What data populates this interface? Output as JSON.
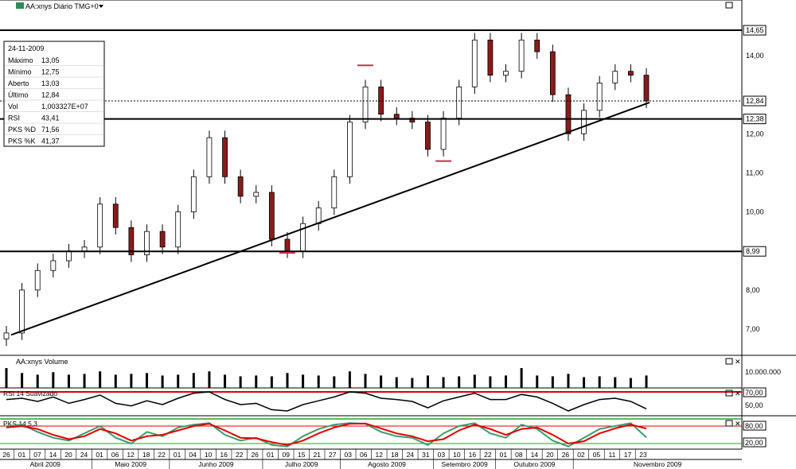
{
  "chart_title": "AA:xnys Diário TMG+0",
  "info_box": {
    "date": "24-11-2009",
    "rows": [
      {
        "label": "Máximo",
        "value": "13,05",
        "color": "#000000"
      },
      {
        "label": "Mínimo",
        "value": "12,75",
        "color": "#000000"
      },
      {
        "label": "Aberto",
        "value": "13,03",
        "color": "#000000"
      },
      {
        "label": "Último",
        "value": "12,84",
        "color": "#000000"
      },
      {
        "label": "Vol",
        "value": "1,003327E+07",
        "color": "#000000"
      },
      {
        "label": "RSI",
        "value": "43,41",
        "color": "#000000"
      },
      {
        "label": "PKS %D",
        "value": "71,56",
        "color": "#c00000"
      },
      {
        "label": "PKS %K",
        "value": "41,37",
        "color": "#2e8b57"
      }
    ]
  },
  "price_labels": [
    {
      "text": "14,65",
      "boxed": true
    },
    {
      "text": "14,00",
      "boxed": false
    },
    {
      "text": "12,84",
      "boxed": true
    },
    {
      "text": "12,38",
      "boxed": true
    },
    {
      "text": "12,00",
      "boxed": false
    },
    {
      "text": "11,00",
      "boxed": false
    },
    {
      "text": "10,00",
      "boxed": false
    },
    {
      "text": "8,99",
      "boxed": true
    },
    {
      "text": "8,00",
      "boxed": false
    },
    {
      "text": "7,00",
      "boxed": false
    }
  ],
  "volume_panel": {
    "title": "AA:xnys Volume",
    "label": "10.000.000"
  },
  "rsi_panel": {
    "title": "RSI 14 Suavizado",
    "labels": [
      "70,00",
      "50,00"
    ]
  },
  "stoch_panel": {
    "title": "PKS 14,5,3",
    "labels": [
      "80,00",
      "20,00"
    ]
  },
  "x_axis": {
    "days": [
      "26",
      "01",
      "07",
      "14",
      "20",
      "24",
      "01",
      "06",
      "12",
      "18",
      "22",
      "01",
      "04",
      "10",
      "16",
      "22",
      "26",
      "01",
      "09",
      "15",
      "21",
      "27",
      "03",
      "06",
      "12",
      "18",
      "24",
      "31",
      "03",
      "10",
      "16",
      "22",
      "01",
      "08",
      "14",
      "20",
      "26",
      "02",
      "05",
      "11",
      "17",
      "23"
    ],
    "months": [
      "Abril 2009",
      "Maio 2009",
      "Junho 2009",
      "Julho 2009",
      "Agosto 2009",
      "Setembro 2009",
      "Outubro 2009",
      "Novembro 2009"
    ]
  },
  "colors": {
    "up_candle": "#ffffff",
    "down_candle": "#8b1a1a",
    "rsi_level_70": "#e00000",
    "stoch_level": "#2e9e2e",
    "stoch_k": "#3c9c6c",
    "stoch_d": "#e00000",
    "marker": "#c0304a"
  },
  "chart_data": [
    {
      "type": "line",
      "subtype": "candlestick",
      "title": "AA:xnys Diário TMG+0",
      "y_axis_labels": [
        "7,00",
        "8,00",
        "10,00",
        "11,00",
        "12,00",
        "14,00"
      ],
      "horizontal_lines": [
        14.65,
        12.38,
        8.99
      ],
      "trendline": {
        "from": [
          "2009-03-27",
          6.85
        ],
        "to": [
          "2009-11-24",
          12.8
        ]
      },
      "markers": [
        {
          "date": "2009-08-07",
          "price": 13.75
        },
        {
          "date": "2009-09-02",
          "price": 11.3
        },
        {
          "date": "2009-07-09",
          "price": 8.95
        }
      ],
      "x": [
        "2009-03-26",
        "2009-04-01",
        "2009-04-07",
        "2009-04-14",
        "2009-04-20",
        "2009-04-24",
        "2009-05-01",
        "2009-05-06",
        "2009-05-12",
        "2009-05-18",
        "2009-05-22",
        "2009-06-01",
        "2009-06-04",
        "2009-06-10",
        "2009-06-16",
        "2009-06-22",
        "2009-06-26",
        "2009-07-01",
        "2009-07-09",
        "2009-07-15",
        "2009-07-21",
        "2009-07-27",
        "2009-08-03",
        "2009-08-06",
        "2009-08-12",
        "2009-08-18",
        "2009-08-24",
        "2009-08-31",
        "2009-09-03",
        "2009-09-10",
        "2009-09-16",
        "2009-09-22",
        "2009-10-01",
        "2009-10-08",
        "2009-10-14",
        "2009-10-20",
        "2009-10-26",
        "2009-11-02",
        "2009-11-05",
        "2009-11-11",
        "2009-11-17",
        "2009-11-23"
      ],
      "series": [
        {
          "name": "Último",
          "values": [
            6.9,
            8.0,
            8.5,
            8.75,
            9.0,
            9.1,
            10.2,
            9.6,
            8.9,
            9.5,
            9.1,
            10.0,
            10.9,
            11.9,
            10.9,
            10.4,
            10.5,
            9.3,
            9.0,
            9.7,
            10.1,
            10.9,
            12.3,
            13.2,
            12.5,
            12.4,
            12.3,
            11.6,
            12.4,
            13.2,
            14.4,
            13.5,
            13.6,
            14.4,
            14.1,
            13.0,
            12.0,
            12.6,
            13.3,
            13.6,
            13.5,
            12.84
          ]
        }
      ]
    },
    {
      "type": "bar",
      "title": "AA:xnys Volume",
      "y_axis_labels": [
        "10.000.000"
      ],
      "series": [
        {
          "name": "Volume",
          "values": [
            12000000,
            9000000,
            8000000,
            9500000,
            8000000,
            8500000,
            10000000,
            8000000,
            8500000,
            9000000,
            7500000,
            8000000,
            9000000,
            10000000,
            8000000,
            7000000,
            7500000,
            7000000,
            9000000,
            8000000,
            7500000,
            7000000,
            10000000,
            8500000,
            7500000,
            6500000,
            6000000,
            7500000,
            6500000,
            7000000,
            8000000,
            7000000,
            7500000,
            12000000,
            7500000,
            7000000,
            8500000,
            6500000,
            7000000,
            6500000,
            6000000,
            7500000
          ]
        }
      ]
    },
    {
      "type": "line",
      "title": "RSI 14 Suavizado",
      "y_axis_labels": [
        "70,00",
        "50,00"
      ],
      "series": [
        {
          "name": "RSI",
          "values": [
            58,
            60,
            55,
            62,
            52,
            58,
            65,
            52,
            48,
            56,
            50,
            60,
            68,
            70,
            58,
            50,
            52,
            42,
            40,
            50,
            56,
            62,
            70,
            68,
            60,
            58,
            55,
            45,
            56,
            62,
            68,
            58,
            58,
            66,
            62,
            52,
            40,
            50,
            58,
            60,
            55,
            43.41
          ]
        }
      ]
    },
    {
      "type": "line",
      "title": "PKS 14,5,3",
      "y_axis_labels": [
        "80,00",
        "20,00"
      ],
      "series": [
        {
          "name": "PKS %K",
          "values": [
            80,
            85,
            60,
            40,
            30,
            55,
            80,
            40,
            20,
            60,
            45,
            75,
            85,
            90,
            50,
            30,
            40,
            15,
            10,
            45,
            70,
            85,
            90,
            88,
            60,
            45,
            40,
            15,
            55,
            80,
            90,
            55,
            40,
            85,
            70,
            30,
            10,
            40,
            70,
            80,
            90,
            41.37
          ]
        },
        {
          "name": "PKS %D",
          "values": [
            75,
            80,
            70,
            50,
            35,
            45,
            70,
            55,
            30,
            45,
            50,
            65,
            80,
            88,
            65,
            40,
            38,
            25,
            15,
            30,
            55,
            75,
            88,
            89,
            72,
            55,
            45,
            28,
            35,
            65,
            85,
            70,
            50,
            70,
            75,
            50,
            20,
            28,
            55,
            72,
            85,
            71.56
          ]
        }
      ]
    }
  ]
}
